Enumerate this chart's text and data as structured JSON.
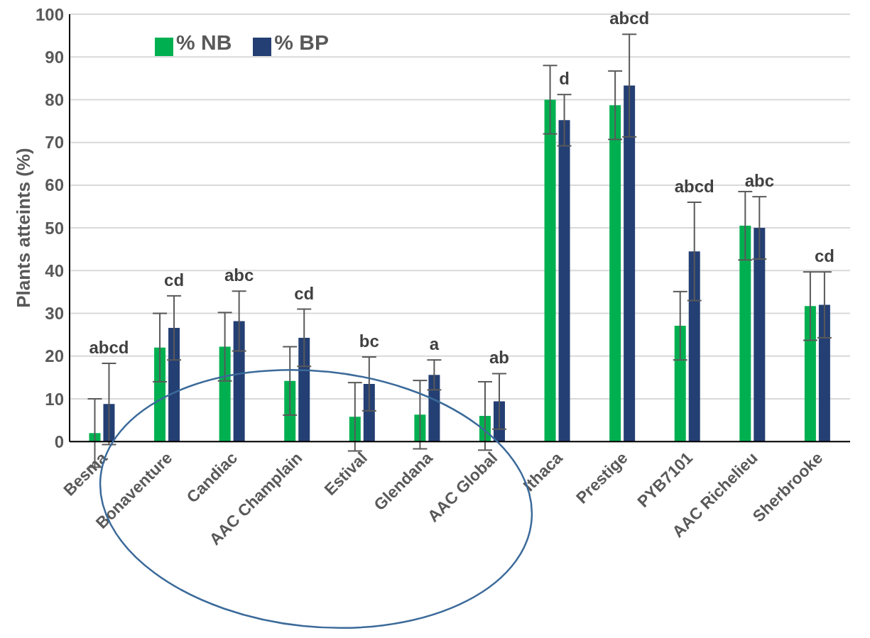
{
  "chart_data": {
    "type": "bar",
    "ylabel": "Plants atteints (%)",
    "categories": [
      "Besma",
      "Bonaventure",
      "Candiac",
      "AAC Champlain",
      "Estival",
      "Glendana",
      "AAC Global",
      "Ithaca",
      "Prestige",
      "PYB7101",
      "AAC Richelieu",
      "Sherbrooke"
    ],
    "series": [
      {
        "name": "% NB",
        "color": "#00b050",
        "values": [
          2,
          22,
          22.2,
          14.2,
          5.8,
          6.3,
          6,
          80,
          78.7,
          27.1,
          50.5,
          31.7
        ],
        "errors": [
          8,
          8,
          8,
          8,
          8,
          8,
          8,
          8,
          8,
          8,
          8,
          8
        ]
      },
      {
        "name": "% BP",
        "color": "#243f73",
        "values": [
          8.8,
          26.6,
          28.2,
          24.3,
          13.5,
          15.6,
          9.4,
          75.2,
          83.3,
          44.5,
          50,
          32
        ],
        "errors": [
          9.5,
          7.5,
          7,
          6.7,
          6.3,
          3.5,
          6.5,
          6,
          12,
          11.5,
          7.3,
          7.7
        ]
      }
    ],
    "annotations": [
      "abcd",
      "cd",
      "abc",
      "cd",
      "bc",
      "a",
      "ab",
      "d",
      "abcd",
      "abcd",
      "abc",
      "cd"
    ],
    "ylim": [
      0,
      100
    ],
    "yticks": [
      0,
      10,
      20,
      30,
      40,
      50,
      60,
      70,
      80,
      90,
      100
    ],
    "grid": "y",
    "legend": "top left"
  }
}
